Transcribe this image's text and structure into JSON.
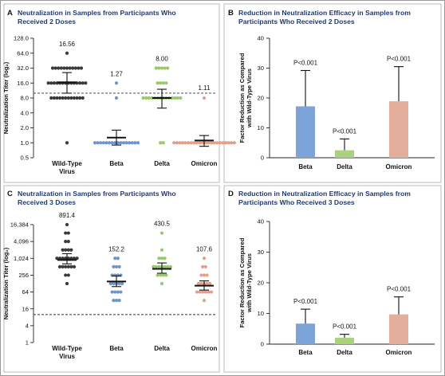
{
  "panels": [
    {
      "letter": "A",
      "title_lines": [
        "Neutralization in Samples from Participants Who",
        "Received 2 Doses"
      ]
    },
    {
      "letter": "B",
      "title_lines": [
        "Reduction in Neutralization Efficacy in Samples from",
        "Participants Who Received 2 Doses"
      ]
    },
    {
      "letter": "C",
      "title_lines": [
        "Neutralization in Samples from Participants Who",
        "Received 3 Doses"
      ]
    },
    {
      "letter": "D",
      "title_lines": [
        "Reduction in Neutralization Efficacy in Samples from",
        "Participants Who Received 3 Doses"
      ]
    }
  ],
  "chart_data": [
    {
      "panel": "A",
      "type": "scatter",
      "ylabel": "Neutralization Titer (log₂)",
      "yscale": "log2",
      "ylim": [
        0.5,
        128
      ],
      "yticks": [
        0.5,
        1.0,
        2.0,
        4.0,
        8.0,
        16.0,
        32.0,
        64.0,
        128.0
      ],
      "ytick_labels": [
        "0.5",
        "1.0",
        "2.0",
        "4.0",
        "8.0",
        "16.0",
        "32.0",
        "64.0",
        "128.0"
      ],
      "categories": [
        [
          "Wild-Type",
          "Virus"
        ],
        [
          "Beta"
        ],
        [
          "Delta"
        ],
        [
          "Omicron"
        ]
      ],
      "geometric_means": [
        16.56,
        1.27,
        8.0,
        1.11
      ],
      "mean_labels": [
        "16.56",
        "1.27",
        "8.00",
        "1.11"
      ],
      "error_bars": [
        [
          10,
          26
        ],
        [
          0.9,
          1.8
        ],
        [
          5,
          12
        ],
        [
          0.85,
          1.4
        ]
      ],
      "threshold": 10,
      "colors": [
        "#3a3a3a",
        "#6f95cf",
        "#98c968",
        "#e2a08a"
      ],
      "points": [
        [
          [
            1,
            1
          ],
          [
            8,
            12
          ],
          [
            16,
            14
          ],
          [
            32,
            11
          ],
          [
            64,
            1
          ]
        ],
        [
          [
            1,
            16
          ],
          [
            8,
            1
          ],
          [
            16,
            1
          ]
        ],
        [
          [
            1,
            2
          ],
          [
            8,
            14
          ],
          [
            16,
            4
          ],
          [
            32,
            5
          ]
        ],
        [
          [
            1,
            22
          ],
          [
            8,
            1
          ]
        ]
      ]
    },
    {
      "panel": "B",
      "type": "bar",
      "ylabel": "Factor Reduction as Compared with Wild-Type Virus",
      "ylim": [
        0,
        40
      ],
      "yticks": [
        0,
        10,
        20,
        30,
        40
      ],
      "categories": [
        "Beta",
        "Delta",
        "Omicron"
      ],
      "values": [
        17.2,
        2.5,
        18.9
      ],
      "error_upper": [
        29.2,
        6.3,
        30.5
      ],
      "significance": [
        "P<0.001",
        "P<0.001",
        "P<0.001"
      ],
      "colors": [
        "#7ea3d8",
        "#a8d27c",
        "#e3af9c"
      ]
    },
    {
      "panel": "C",
      "type": "scatter",
      "ylabel": "Neutralization Titer (log₂)",
      "yscale": "log2",
      "ylim": [
        1,
        16384
      ],
      "yticks": [
        1,
        4,
        16,
        64,
        256,
        1024,
        4096,
        16384
      ],
      "ytick_labels": [
        "1",
        "4",
        "16",
        "64",
        "256",
        "1,024",
        "4,096",
        "16,384"
      ],
      "categories": [
        [
          "Wild-Type",
          "Virus"
        ],
        [
          "Beta"
        ],
        [
          "Delta"
        ],
        [
          "Omicron"
        ]
      ],
      "geometric_means": [
        891.4,
        152.2,
        430.5,
        107.6
      ],
      "mean_labels": [
        "891.4",
        "152.2",
        "430.5",
        "107.6"
      ],
      "error_bars": [
        [
          650,
          1500
        ],
        [
          100,
          240
        ],
        [
          300,
          700
        ],
        [
          75,
          160
        ]
      ],
      "threshold": 10,
      "colors": [
        "#3a3a3a",
        "#6f95cf",
        "#98c968",
        "#e2a08a"
      ],
      "points": [
        [
          [
            128,
            1
          ],
          [
            256,
            2
          ],
          [
            512,
            6
          ],
          [
            1024,
            8
          ],
          [
            2048,
            4
          ],
          [
            4096,
            2
          ],
          [
            8192,
            2
          ],
          [
            16384,
            1
          ]
        ],
        [
          [
            32,
            3
          ],
          [
            64,
            4
          ],
          [
            128,
            5
          ],
          [
            256,
            4
          ],
          [
            512,
            3
          ],
          [
            1024,
            2
          ]
        ],
        [
          [
            128,
            1
          ],
          [
            256,
            4
          ],
          [
            512,
            7
          ],
          [
            1024,
            3
          ],
          [
            2048,
            1
          ],
          [
            8192,
            1
          ]
        ],
        [
          [
            32,
            1
          ],
          [
            64,
            6
          ],
          [
            128,
            5
          ],
          [
            256,
            3
          ],
          [
            512,
            2
          ],
          [
            1024,
            1
          ]
        ]
      ]
    },
    {
      "panel": "D",
      "type": "bar",
      "ylabel": "Factor Reduction as Compared with Wild-Type Virus",
      "ylim": [
        0,
        40
      ],
      "yticks": [
        0,
        10,
        20,
        30,
        40
      ],
      "categories": [
        "Beta",
        "Delta",
        "Omicron"
      ],
      "values": [
        6.7,
        2.1,
        9.7
      ],
      "error_upper": [
        11.4,
        3.2,
        15.4
      ],
      "significance": [
        "P<0.001",
        "P<0.001",
        "P<0.001"
      ],
      "colors": [
        "#7ea3d8",
        "#a8d27c",
        "#e3af9c"
      ]
    }
  ]
}
